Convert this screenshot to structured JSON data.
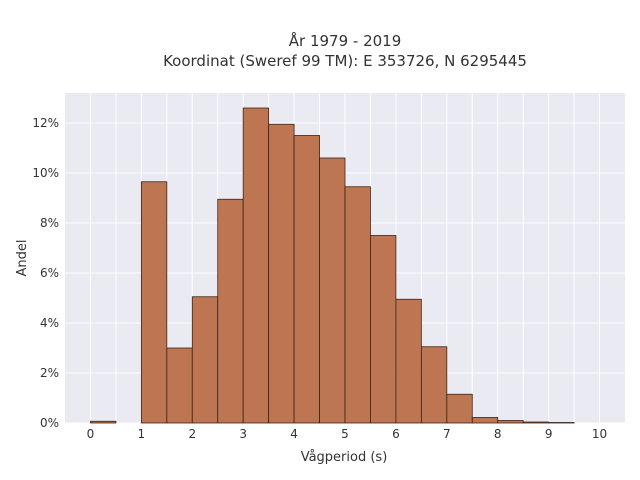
{
  "chart_data": {
    "type": "bar",
    "title": "År 1979 - 2019",
    "subtitle": "Koordinat (Sweref 99 TM): E 353726, N 6295445",
    "xlabel": "Vågperiod (s)",
    "ylabel": "Andel",
    "bin_width": 0.5,
    "bins": [
      {
        "x0": 0.0,
        "value": 0.07
      },
      {
        "x0": 0.5,
        "value": 0.0
      },
      {
        "x0": 1.0,
        "value": 9.65
      },
      {
        "x0": 1.5,
        "value": 3.0
      },
      {
        "x0": 2.0,
        "value": 5.05
      },
      {
        "x0": 2.5,
        "value": 8.95
      },
      {
        "x0": 3.0,
        "value": 12.6
      },
      {
        "x0": 3.5,
        "value": 11.95
      },
      {
        "x0": 4.0,
        "value": 11.5
      },
      {
        "x0": 4.5,
        "value": 10.6
      },
      {
        "x0": 5.0,
        "value": 9.45
      },
      {
        "x0": 5.5,
        "value": 7.5
      },
      {
        "x0": 6.0,
        "value": 4.95
      },
      {
        "x0": 6.5,
        "value": 3.05
      },
      {
        "x0": 7.0,
        "value": 1.15
      },
      {
        "x0": 7.5,
        "value": 0.22
      },
      {
        "x0": 8.0,
        "value": 0.1
      },
      {
        "x0": 8.5,
        "value": 0.04
      },
      {
        "x0": 9.0,
        "value": 0.02
      },
      {
        "x0": 9.5,
        "value": 0.0
      }
    ],
    "xlim": [
      -0.5,
      10.5
    ],
    "ylim": [
      0,
      13.2
    ],
    "xticks": [
      0,
      1,
      2,
      3,
      4,
      5,
      6,
      7,
      8,
      9,
      10
    ],
    "xtick_labels": [
      "0",
      "1",
      "2",
      "3",
      "4",
      "5",
      "6",
      "7",
      "8",
      "9",
      "10"
    ],
    "yticks": [
      0,
      2,
      4,
      6,
      8,
      10,
      12
    ],
    "ytick_labels": [
      "0%",
      "2%",
      "4%",
      "6%",
      "8%",
      "10%",
      "12%"
    ],
    "grid": true,
    "colors": {
      "bar_fill": "#b86b43",
      "bar_edge": "#3d2418",
      "plot_background": "#eaeaf2",
      "grid": "#ffffff"
    }
  }
}
